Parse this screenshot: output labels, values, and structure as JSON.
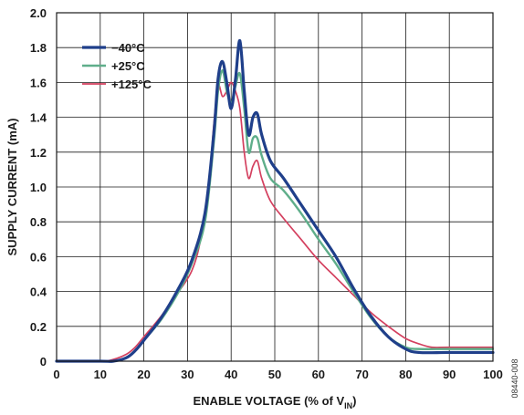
{
  "chart_data": {
    "type": "line",
    "xlabel_parts": [
      "ENABLE VOLTAGE (% of V",
      "IN",
      ")"
    ],
    "ylabel": "SUPPLY CURRENT (mA)",
    "xlim": [
      0,
      100
    ],
    "ylim": [
      0,
      2.0
    ],
    "x_ticks": [
      "0",
      "10",
      "20",
      "30",
      "40",
      "50",
      "60",
      "70",
      "80",
      "90",
      "100"
    ],
    "y_ticks": [
      "0",
      "0.2",
      "0.4",
      "0.6",
      "0.8",
      "1.0",
      "1.2",
      "1.4",
      "1.6",
      "1.8",
      "2.0"
    ],
    "grid": true,
    "legend_position": "top-left",
    "figure_id": "08440-008",
    "series": [
      {
        "name": "−40°C",
        "color": "#1f3f8a",
        "points": [
          [
            0,
            0
          ],
          [
            10,
            0
          ],
          [
            13,
            0
          ],
          [
            16,
            0.02
          ],
          [
            18,
            0.06
          ],
          [
            20,
            0.12
          ],
          [
            24,
            0.25
          ],
          [
            28,
            0.42
          ],
          [
            31,
            0.58
          ],
          [
            34,
            0.85
          ],
          [
            36,
            1.3
          ],
          [
            37,
            1.62
          ],
          [
            38,
            1.72
          ],
          [
            39,
            1.6
          ],
          [
            40,
            1.45
          ],
          [
            41,
            1.62
          ],
          [
            42,
            1.84
          ],
          [
            43,
            1.55
          ],
          [
            44,
            1.3
          ],
          [
            45,
            1.4
          ],
          [
            46,
            1.42
          ],
          [
            47,
            1.3
          ],
          [
            49,
            1.15
          ],
          [
            52,
            1.05
          ],
          [
            56,
            0.9
          ],
          [
            60,
            0.75
          ],
          [
            64,
            0.6
          ],
          [
            68,
            0.42
          ],
          [
            72,
            0.26
          ],
          [
            76,
            0.14
          ],
          [
            80,
            0.07
          ],
          [
            83,
            0.05
          ],
          [
            90,
            0.05
          ],
          [
            100,
            0.05
          ]
        ]
      },
      {
        "name": "+25°C",
        "color": "#5fae8a",
        "points": [
          [
            0,
            0
          ],
          [
            10,
            0
          ],
          [
            13,
            0
          ],
          [
            16,
            0.02
          ],
          [
            18,
            0.06
          ],
          [
            20,
            0.12
          ],
          [
            24,
            0.24
          ],
          [
            28,
            0.4
          ],
          [
            31,
            0.56
          ],
          [
            34,
            0.8
          ],
          [
            36,
            1.25
          ],
          [
            37,
            1.55
          ],
          [
            38,
            1.67
          ],
          [
            39,
            1.55
          ],
          [
            40,
            1.48
          ],
          [
            41,
            1.58
          ],
          [
            42,
            1.65
          ],
          [
            43,
            1.45
          ],
          [
            44,
            1.2
          ],
          [
            45,
            1.28
          ],
          [
            46,
            1.28
          ],
          [
            47,
            1.18
          ],
          [
            49,
            1.05
          ],
          [
            52,
            0.98
          ],
          [
            56,
            0.85
          ],
          [
            60,
            0.7
          ],
          [
            64,
            0.56
          ],
          [
            68,
            0.4
          ],
          [
            72,
            0.25
          ],
          [
            76,
            0.14
          ],
          [
            80,
            0.08
          ],
          [
            83,
            0.07
          ],
          [
            90,
            0.07
          ],
          [
            100,
            0.07
          ]
        ]
      },
      {
        "name": "+125°C",
        "color": "#d4405f",
        "points": [
          [
            0,
            0
          ],
          [
            10,
            0
          ],
          [
            13,
            0.01
          ],
          [
            16,
            0.04
          ],
          [
            18,
            0.08
          ],
          [
            20,
            0.14
          ],
          [
            24,
            0.26
          ],
          [
            28,
            0.4
          ],
          [
            31,
            0.52
          ],
          [
            33,
            0.7
          ],
          [
            35,
            1.05
          ],
          [
            36,
            1.35
          ],
          [
            37,
            1.58
          ],
          [
            38,
            1.52
          ],
          [
            39,
            1.55
          ],
          [
            40,
            1.6
          ],
          [
            41,
            1.55
          ],
          [
            42,
            1.45
          ],
          [
            43,
            1.2
          ],
          [
            44,
            1.05
          ],
          [
            45,
            1.12
          ],
          [
            46,
            1.15
          ],
          [
            47,
            1.05
          ],
          [
            49,
            0.92
          ],
          [
            52,
            0.82
          ],
          [
            56,
            0.7
          ],
          [
            60,
            0.58
          ],
          [
            64,
            0.48
          ],
          [
            68,
            0.38
          ],
          [
            72,
            0.28
          ],
          [
            76,
            0.2
          ],
          [
            80,
            0.13
          ],
          [
            83,
            0.1
          ],
          [
            86,
            0.08
          ],
          [
            90,
            0.08
          ],
          [
            100,
            0.08
          ]
        ]
      }
    ]
  }
}
